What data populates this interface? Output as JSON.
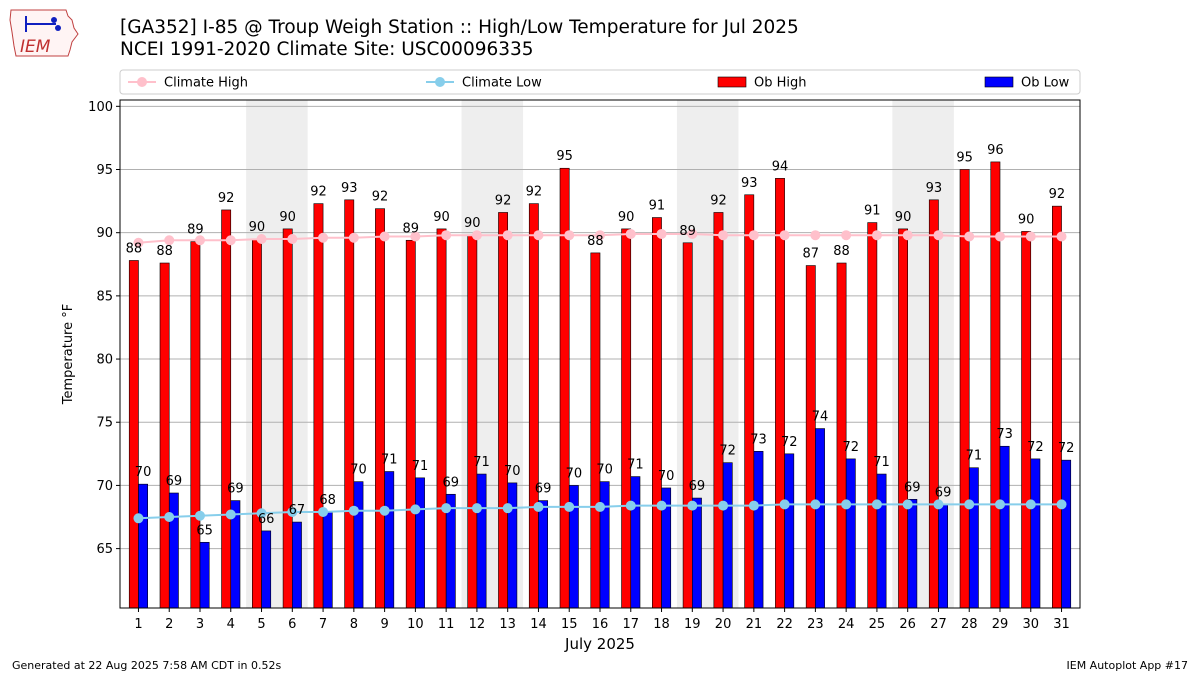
{
  "header": {
    "title": "[GA352] I-85 @ Troup Weigh Station :: High/Low Temperature for Jul 2025",
    "subtitle": "NCEI 1991-2020 Climate Site: USC00096335"
  },
  "logo": {
    "text": "IEM",
    "icon": "iem-iowa-logo"
  },
  "footer": {
    "generated": "Generated at 22 Aug 2025 7:58 AM CDT in 0.52s",
    "app": "IEM Autoplot App #17"
  },
  "colors": {
    "ob_high": "#ff0000",
    "ob_low": "#0000ff",
    "climate_high": "#ffc0cb",
    "climate_low": "#87ceeb",
    "weekend_shade": "#eeeeee"
  },
  "chart_data": {
    "type": "bar",
    "xlabel": "July 2025",
    "ylabel": "Temperature °F",
    "ylim": [
      60.3,
      100.5
    ],
    "yticks": [
      65,
      70,
      75,
      80,
      85,
      90,
      95,
      100
    ],
    "grid": "horizontal",
    "legend_position": "top",
    "categories": [
      "1",
      "2",
      "3",
      "4",
      "5",
      "6",
      "7",
      "8",
      "9",
      "10",
      "11",
      "12",
      "13",
      "14",
      "15",
      "16",
      "17",
      "18",
      "19",
      "20",
      "21",
      "22",
      "23",
      "24",
      "25",
      "26",
      "27",
      "28",
      "29",
      "30",
      "31"
    ],
    "shaded_day_ranges": [
      [
        5,
        6
      ],
      [
        12,
        13
      ],
      [
        19,
        20
      ],
      [
        26,
        27
      ]
    ],
    "series": [
      {
        "name": "Climate High",
        "kind": "line",
        "values": [
          89.2,
          89.4,
          89.4,
          89.4,
          89.5,
          89.5,
          89.6,
          89.6,
          89.7,
          89.7,
          89.8,
          89.8,
          89.8,
          89.8,
          89.8,
          89.8,
          89.9,
          89.9,
          89.9,
          89.8,
          89.8,
          89.8,
          89.8,
          89.8,
          89.8,
          89.8,
          89.8,
          89.7,
          89.7,
          89.7,
          89.7
        ]
      },
      {
        "name": "Climate Low",
        "kind": "line",
        "values": [
          67.4,
          67.5,
          67.6,
          67.7,
          67.8,
          67.9,
          67.9,
          68.0,
          68.0,
          68.1,
          68.2,
          68.2,
          68.2,
          68.3,
          68.3,
          68.3,
          68.4,
          68.4,
          68.4,
          68.4,
          68.4,
          68.5,
          68.5,
          68.5,
          68.5,
          68.5,
          68.5,
          68.5,
          68.5,
          68.5,
          68.5
        ]
      },
      {
        "name": "Ob High",
        "kind": "bar",
        "values": [
          87.8,
          87.6,
          89.3,
          91.8,
          89.5,
          90.3,
          92.3,
          92.6,
          91.9,
          89.4,
          90.3,
          89.8,
          91.6,
          92.3,
          95.1,
          88.4,
          90.3,
          91.2,
          89.2,
          91.6,
          93.0,
          94.3,
          87.4,
          87.6,
          90.8,
          90.3,
          92.6,
          95.0,
          95.6,
          90.1,
          92.1
        ],
        "labels": [
          "88",
          "88",
          "89",
          "92",
          "90",
          "90",
          "92",
          "93",
          "92",
          "89",
          "90",
          "90",
          "92",
          "92",
          "95",
          "88",
          "90",
          "91",
          "89",
          "92",
          "93",
          "94",
          "87",
          "88",
          "91",
          "90",
          "93",
          "95",
          "96",
          "90",
          "92"
        ]
      },
      {
        "name": "Ob Low",
        "kind": "bar",
        "values": [
          70.1,
          69.4,
          65.5,
          68.8,
          66.4,
          67.1,
          67.9,
          70.3,
          71.1,
          70.6,
          69.3,
          70.9,
          70.2,
          68.8,
          70.0,
          70.3,
          70.7,
          69.8,
          69.0,
          71.8,
          72.7,
          72.5,
          74.5,
          72.1,
          70.9,
          68.9,
          68.5,
          71.4,
          73.1,
          72.1,
          72.0
        ],
        "labels": [
          "70",
          "69",
          "65",
          "69",
          "66",
          "67",
          "68",
          "70",
          "71",
          "71",
          "69",
          "71",
          "70",
          "69",
          "70",
          "70",
          "71",
          "70",
          "69",
          "72",
          "73",
          "72",
          "74",
          "72",
          "71",
          "69",
          "69",
          "71",
          "73",
          "72",
          "72"
        ]
      }
    ]
  }
}
